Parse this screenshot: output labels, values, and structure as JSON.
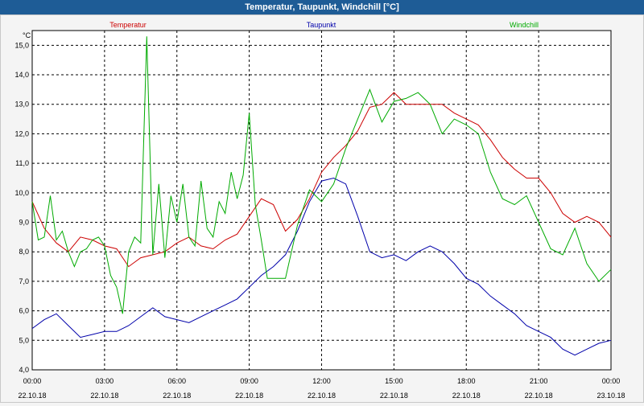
{
  "window": {
    "title": "Temperatur, Taupunkt, Windchill [°C]"
  },
  "chart_data": {
    "type": "line",
    "title": "Temperatur, Taupunkt, Windchill [°C]",
    "ylabel": "°C",
    "xlabel": "",
    "ylim": [
      4.0,
      15.5
    ],
    "xlim": [
      0,
      24
    ],
    "grid": true,
    "legend": "top",
    "yticks": [
      4.0,
      5.0,
      6.0,
      7.0,
      8.0,
      9.0,
      10.0,
      11.0,
      12.0,
      13.0,
      14.0,
      15.0
    ],
    "ytick_labels": [
      "4,0",
      "5,0",
      "6,0",
      "7,0",
      "8,0",
      "9,0",
      "10,0",
      "11,0",
      "12,0",
      "13,0",
      "14,0",
      "15,0"
    ],
    "xticks": [
      0,
      3,
      6,
      9,
      12,
      15,
      18,
      21,
      24
    ],
    "xtick_labels": [
      {
        "time": "00:00",
        "date": "22.10.18"
      },
      {
        "time": "03:00",
        "date": "22.10.18"
      },
      {
        "time": "06:00",
        "date": "22.10.18"
      },
      {
        "time": "09:00",
        "date": "22.10.18"
      },
      {
        "time": "12:00",
        "date": "22.10.18"
      },
      {
        "time": "15:00",
        "date": "22.10.18"
      },
      {
        "time": "18:00",
        "date": "22.10.18"
      },
      {
        "time": "21:00",
        "date": "22.10.18"
      },
      {
        "time": "00:00",
        "date": "23.10.18"
      }
    ],
    "series": [
      {
        "name": "Temperatur",
        "color": "#cc0000",
        "x": [
          0,
          0.5,
          1,
          1.5,
          2,
          2.5,
          3,
          3.5,
          4,
          4.5,
          5,
          5.5,
          6,
          6.5,
          7,
          7.5,
          8,
          8.5,
          9,
          9.5,
          10,
          10.5,
          11,
          11.5,
          12,
          12.5,
          13,
          13.5,
          14,
          14.5,
          15,
          15.5,
          16,
          16.5,
          17,
          17.5,
          18,
          18.5,
          19,
          19.5,
          20,
          20.5,
          21,
          21.5,
          22,
          22.5,
          23,
          23.5,
          24
        ],
        "values": [
          9.7,
          8.8,
          8.3,
          8.0,
          8.5,
          8.4,
          8.2,
          8.1,
          7.5,
          7.8,
          7.9,
          8.0,
          8.3,
          8.5,
          8.2,
          8.1,
          8.4,
          8.6,
          9.2,
          9.8,
          9.6,
          8.7,
          9.1,
          9.8,
          10.7,
          11.2,
          11.6,
          12.1,
          12.9,
          13.0,
          13.4,
          13.0,
          13.0,
          13.0,
          13.0,
          12.7,
          12.5,
          12.3,
          11.8,
          11.2,
          10.8,
          10.5,
          10.5,
          10.0,
          9.3,
          9.0,
          9.2,
          9.0,
          8.5
        ]
      },
      {
        "name": "Taupunkt",
        "color": "#0000aa",
        "x": [
          0,
          0.5,
          1,
          1.5,
          2,
          2.5,
          3,
          3.5,
          4,
          4.5,
          5,
          5.5,
          6,
          6.5,
          7,
          7.5,
          8,
          8.5,
          9,
          9.5,
          10,
          10.5,
          11,
          11.5,
          12,
          12.5,
          13,
          13.5,
          14,
          14.5,
          15,
          15.5,
          16,
          16.5,
          17,
          17.5,
          18,
          18.5,
          19,
          19.5,
          20,
          20.5,
          21,
          21.5,
          22,
          22.5,
          23,
          23.5,
          24
        ],
        "values": [
          5.4,
          5.7,
          5.9,
          5.5,
          5.1,
          5.2,
          5.3,
          5.3,
          5.5,
          5.8,
          6.1,
          5.8,
          5.7,
          5.6,
          5.8,
          6.0,
          6.2,
          6.4,
          6.8,
          7.2,
          7.5,
          7.9,
          8.7,
          9.7,
          10.4,
          10.5,
          10.3,
          9.2,
          8.0,
          7.8,
          7.9,
          7.7,
          8.0,
          8.2,
          8.0,
          7.6,
          7.1,
          6.9,
          6.5,
          6.2,
          5.9,
          5.5,
          5.3,
          5.1,
          4.7,
          4.5,
          4.7,
          4.9,
          5.0
        ]
      },
      {
        "name": "Windchill",
        "color": "#00aa00",
        "x": [
          0,
          0.25,
          0.5,
          0.75,
          1,
          1.25,
          1.5,
          1.75,
          2,
          2.25,
          2.5,
          2.75,
          3,
          3.25,
          3.5,
          3.75,
          4,
          4.25,
          4.5,
          4.75,
          5,
          5.25,
          5.5,
          5.75,
          6,
          6.25,
          6.5,
          6.75,
          7,
          7.25,
          7.5,
          7.75,
          8,
          8.25,
          8.5,
          8.75,
          9,
          9.25,
          9.5,
          9.75,
          10,
          10.5,
          11,
          11.5,
          12,
          12.5,
          13,
          13.5,
          14,
          14.5,
          15,
          15.5,
          16,
          16.5,
          17,
          17.5,
          18,
          18.5,
          19,
          19.5,
          20,
          20.5,
          21,
          21.5,
          22,
          22.5,
          23,
          23.5,
          24
        ],
        "values": [
          9.7,
          8.4,
          8.5,
          9.9,
          8.4,
          8.7,
          8.0,
          7.5,
          8.0,
          8.1,
          8.4,
          8.5,
          8.2,
          7.2,
          6.8,
          5.9,
          8.0,
          8.5,
          8.3,
          15.3,
          7.9,
          10.3,
          7.8,
          9.9,
          9.0,
          10.3,
          8.5,
          8.2,
          10.4,
          8.8,
          8.5,
          9.7,
          9.3,
          10.7,
          9.8,
          10.6,
          12.7,
          9.6,
          8.4,
          7.1,
          7.1,
          7.1,
          8.9,
          10.1,
          9.7,
          10.3,
          11.5,
          12.5,
          13.5,
          12.4,
          13.1,
          13.2,
          13.4,
          13.0,
          12.0,
          12.5,
          12.3,
          12.0,
          10.7,
          9.8,
          9.6,
          9.9,
          9.0,
          8.1,
          7.9,
          8.8,
          7.6,
          7.0,
          7.4
        ]
      }
    ]
  }
}
